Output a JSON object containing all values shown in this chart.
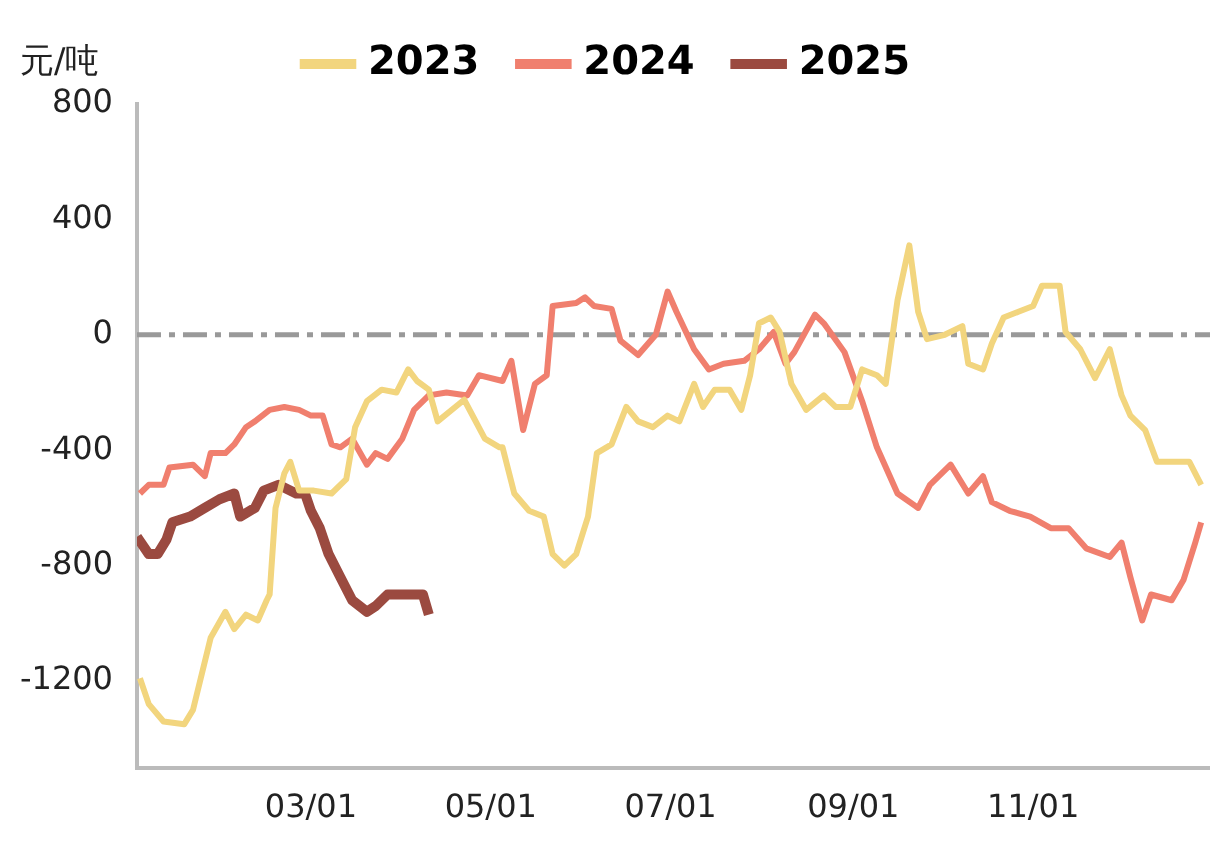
{
  "chart_data": {
    "type": "line",
    "ylabel": "元/吨",
    "legend": "top",
    "marker": "none",
    "grid": false,
    "xlim": [
      "--01-01",
      "--12-31"
    ],
    "xticks": [
      {
        "value": "--03-01",
        "label": "03/01"
      },
      {
        "value": "--05-01",
        "label": "05/01"
      },
      {
        "value": "--07-01",
        "label": "07/01"
      },
      {
        "value": "--09-01",
        "label": "09/01"
      },
      {
        "value": "--11-01",
        "label": "11/01"
      }
    ],
    "ylim": [
      -1500,
      800
    ],
    "yticks": [
      -1200,
      -800,
      -400,
      0,
      400,
      800
    ],
    "ref_lines": [
      {
        "axis": "y",
        "value": 0,
        "color": "#999999",
        "line_style": "dashdot"
      }
    ],
    "series": [
      {
        "name": "2023",
        "color": "#f2d57e",
        "x": [
          "--01-02",
          "--01-05",
          "--01-10",
          "--01-17",
          "--01-20",
          "--01-26",
          "--01-31",
          "--02-03",
          "--02-07",
          "--02-11",
          "--02-14",
          "--02-15",
          "--02-17",
          "--02-20",
          "--02-22",
          "--02-25",
          "--03-02",
          "--03-08",
          "--03-13",
          "--03-16",
          "--03-20",
          "--03-25",
          "--03-30",
          "--04-03",
          "--04-06",
          "--04-10",
          "--04-13",
          "--04-22",
          "--04-29",
          "--05-04",
          "--05-05",
          "--05-09",
          "--05-14",
          "--05-19",
          "--05-22",
          "--05-26",
          "--05-30",
          "--06-03",
          "--06-06",
          "--06-11",
          "--06-16",
          "--06-20",
          "--06-25",
          "--06-30",
          "--07-04",
          "--07-09",
          "--07-12",
          "--07-16",
          "--07-21",
          "--07-25",
          "--07-28",
          "--07-31",
          "--08-04",
          "--08-07",
          "--08-11",
          "--08-16",
          "--08-22",
          "--08-26",
          "--08-31",
          "--09-04",
          "--09-09",
          "--09-12",
          "--09-16",
          "--09-20",
          "--09-23",
          "--09-26",
          "--10-02",
          "--10-08",
          "--10-10",
          "--10-15",
          "--10-18",
          "--10-22",
          "--10-27",
          "--11-01",
          "--11-04",
          "--11-10",
          "--11-12",
          "--11-17",
          "--11-22",
          "--11-27",
          "--12-01",
          "--12-04",
          "--12-09",
          "--12-13",
          "--12-18",
          "--12-24",
          "--12-28"
        ],
        "values": [
          -1190,
          -1280,
          -1340,
          -1350,
          -1300,
          -1050,
          -960,
          -1020,
          -970,
          -990,
          -920,
          -900,
          -600,
          -480,
          -440,
          -540,
          -540,
          -550,
          -500,
          -320,
          -230,
          -190,
          -200,
          -120,
          -160,
          -190,
          -300,
          -225,
          -360,
          -390,
          -390,
          -550,
          -610,
          -630,
          -760,
          -800,
          -760,
          -630,
          -410,
          -380,
          -250,
          -300,
          -320,
          -280,
          -300,
          -170,
          -250,
          -190,
          -190,
          -260,
          -140,
          40,
          60,
          10,
          -170,
          -260,
          -210,
          -250,
          -250,
          -120,
          -140,
          -170,
          120,
          310,
          80,
          -15,
          0,
          30,
          -100,
          -120,
          -30,
          60,
          80,
          100,
          170,
          170,
          10,
          -50,
          -150,
          -50,
          -210,
          -280,
          -330,
          -440,
          -440,
          -440,
          -520
        ]
      },
      {
        "name": "2024",
        "color": "#f07f6e",
        "x": [
          "--01-02",
          "--01-05",
          "--01-10",
          "--01-12",
          "--01-20",
          "--01-24",
          "--01-26",
          "--01-31",
          "--02-03",
          "--02-07",
          "--02-10",
          "--02-15",
          "--02-20",
          "--02-25",
          "--03-01",
          "--03-05",
          "--03-08",
          "--03-11",
          "--03-15",
          "--03-20",
          "--03-23",
          "--03-27",
          "--04-01",
          "--04-05",
          "--04-10",
          "--04-16",
          "--04-23",
          "--04-27",
          "--05-05",
          "--05-08",
          "--05-12",
          "--05-16",
          "--05-20",
          "--05-22",
          "--05-30",
          "--06-02",
          "--06-05",
          "--06-11",
          "--06-14",
          "--06-20",
          "--06-26",
          "--06-30",
          "--07-03",
          "--07-09",
          "--07-14",
          "--07-19",
          "--07-26",
          "--07-31",
          "--08-05",
          "--08-09",
          "--08-12",
          "--08-19",
          "--08-22",
          "--08-29",
          "--09-04",
          "--09-09",
          "--09-16",
          "--09-23",
          "--09-27",
          "--10-04",
          "--10-10",
          "--10-15",
          "--10-18",
          "--10-24",
          "--10-31",
          "--11-07",
          "--11-13",
          "--11-19",
          "--11-27",
          "--12-01",
          "--12-04",
          "--12-08",
          "--12-11",
          "--12-18",
          "--12-22",
          "--12-26",
          "--12-28"
        ],
        "values": [
          -550,
          -520,
          -520,
          -460,
          -450,
          -490,
          -410,
          -410,
          -380,
          -320,
          -300,
          -260,
          -250,
          -260,
          -280,
          -280,
          -380,
          -390,
          -360,
          -450,
          -410,
          -430,
          -360,
          -260,
          -210,
          -200,
          -210,
          -140,
          -160,
          -90,
          -330,
          -170,
          -140,
          100,
          110,
          130,
          100,
          90,
          -20,
          -70,
          0,
          150,
          80,
          -50,
          -120,
          -100,
          -90,
          -50,
          10,
          -100,
          -60,
          70,
          40,
          -60,
          -230,
          -390,
          -550,
          -600,
          -520,
          -450,
          -550,
          -490,
          -580,
          -610,
          -630,
          -670,
          -670,
          -740,
          -770,
          -720,
          -840,
          -990,
          -900,
          -920,
          -850,
          -720,
          -650
        ]
      },
      {
        "name": "2025",
        "color": "#9b4a40",
        "x": [
          "--01-01",
          "--01-05",
          "--01-08",
          "--01-11",
          "--01-13",
          "--01-19",
          "--01-24",
          "--01-29",
          "--02-03",
          "--02-05",
          "--02-10",
          "--02-13",
          "--02-18",
          "--02-24",
          "--02-27",
          "--03-01",
          "--03-04",
          "--03-07",
          "--03-11",
          "--03-15",
          "--03-20",
          "--03-23",
          "--03-27",
          "--04-01",
          "--04-08",
          "--04-10"
        ],
        "values": [
          -700,
          -760,
          -760,
          -710,
          -650,
          -630,
          -600,
          -570,
          -550,
          -630,
          -600,
          -540,
          -520,
          -550,
          -550,
          -610,
          -670,
          -760,
          -840,
          -920,
          -960,
          -940,
          -900,
          -900,
          -900,
          -970
        ]
      }
    ]
  }
}
